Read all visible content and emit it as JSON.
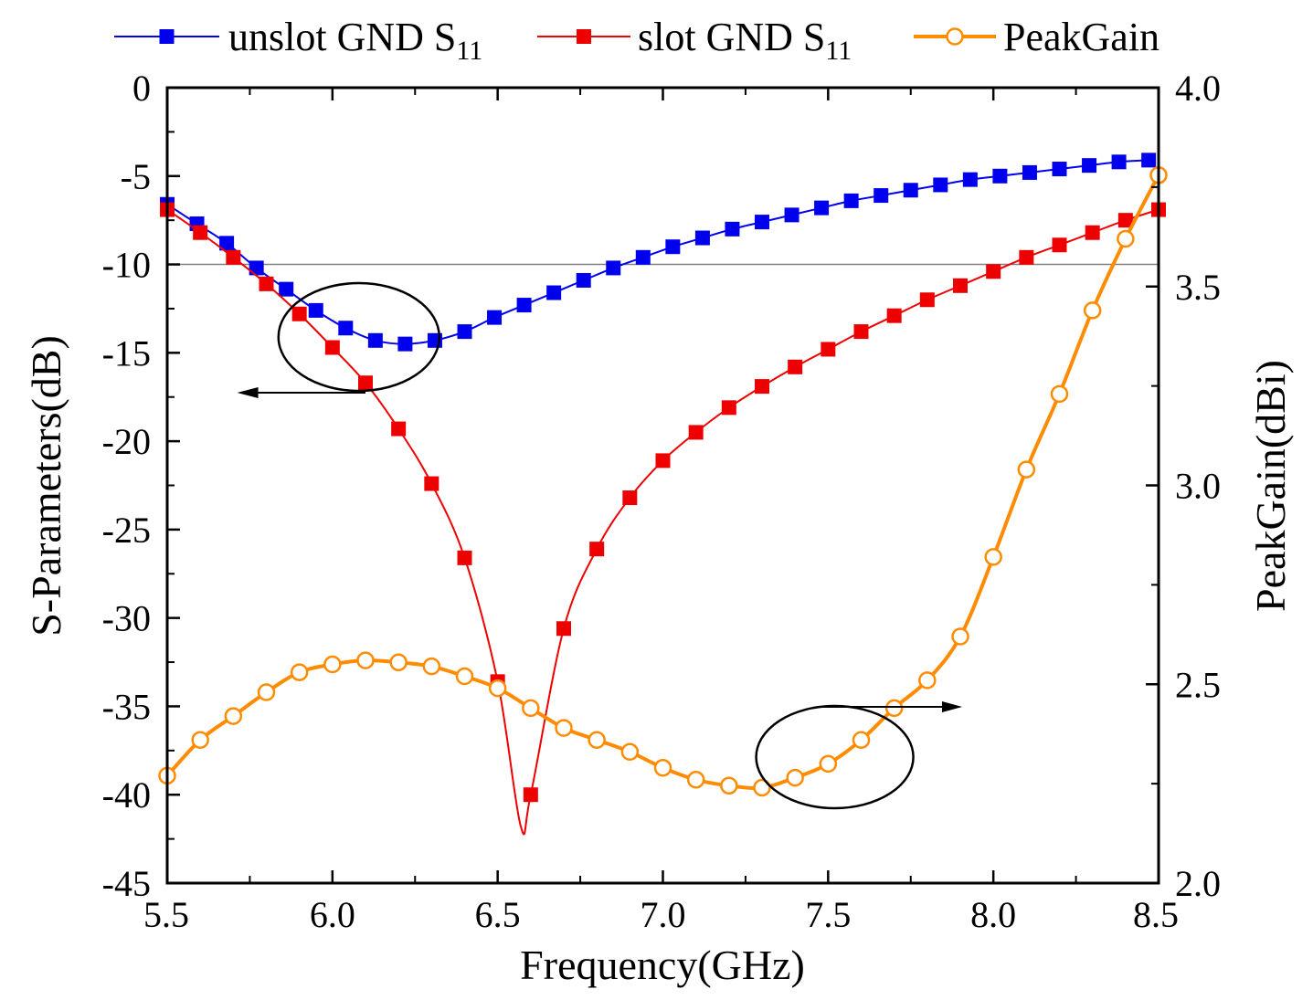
{
  "chart_data": {
    "type": "line",
    "x_axis": {
      "label": "Frequency(GHz)",
      "range": [
        5.5,
        8.5
      ],
      "ticks": [
        5.5,
        6.0,
        6.5,
        7.0,
        7.5,
        8.0,
        8.5
      ],
      "tick_labels": [
        "5.5",
        "6.0",
        "6.5",
        "7.0",
        "7.5",
        "8.0",
        "8.5"
      ]
    },
    "y_left": {
      "label": "S-Parameters(dB)",
      "range": [
        -45,
        0
      ],
      "ticks": [
        0,
        -5,
        -10,
        -15,
        -20,
        -25,
        -30,
        -35,
        -40,
        -45
      ],
      "tick_labels": [
        "0",
        "-5",
        "-10",
        "-15",
        "-20",
        "-25",
        "-30",
        "-35",
        "-40",
        "-45"
      ]
    },
    "y_right": {
      "label": "PeakGain(dBi)",
      "range": [
        2.0,
        4.0
      ],
      "ticks": [
        2.0,
        2.5,
        3.0,
        3.5,
        4.0
      ],
      "tick_labels": [
        "2.0",
        "2.5",
        "3.0",
        "3.5",
        "4.0"
      ]
    },
    "reference_line": {
      "axis": "left",
      "value": -10
    },
    "legend": {
      "position": "top",
      "items": [
        {
          "label": "unslot GND S",
          "subscript": "11",
          "color": "#0000ee",
          "marker": "square"
        },
        {
          "label": "slot GND S",
          "subscript": "11",
          "color": "#ee0000",
          "marker": "square"
        },
        {
          "label": "PeakGain",
          "subscript": "",
          "color": "#ff8c00",
          "marker": "circle-open"
        }
      ]
    },
    "series": [
      {
        "name": "unslot GND S11",
        "axis": "left",
        "color": "#0000ee",
        "x": [
          5.5,
          5.59,
          5.68,
          5.77,
          5.86,
          5.95,
          6.04,
          6.13,
          6.22,
          6.31,
          6.4,
          6.49,
          6.58,
          6.67,
          6.76,
          6.85,
          6.94,
          7.03,
          7.12,
          7.21,
          7.3,
          7.39,
          7.48,
          7.57,
          7.66,
          7.75,
          7.84,
          7.93,
          8.02,
          8.11,
          8.2,
          8.29,
          8.38,
          8.47
        ],
        "y": [
          -6.6,
          -7.7,
          -8.8,
          -10.2,
          -11.4,
          -12.6,
          -13.6,
          -14.3,
          -14.5,
          -14.3,
          -13.8,
          -13.0,
          -12.3,
          -11.6,
          -10.9,
          -10.2,
          -9.6,
          -9.0,
          -8.5,
          -8.0,
          -7.6,
          -7.2,
          -6.8,
          -6.4,
          -6.1,
          -5.8,
          -5.5,
          -5.2,
          -5.0,
          -4.8,
          -4.6,
          -4.4,
          -4.2,
          -4.1
        ]
      },
      {
        "name": "slot GND S11",
        "axis": "left",
        "color": "#ee0000",
        "x": [
          5.5,
          5.6,
          5.7,
          5.8,
          5.9,
          6.0,
          6.1,
          6.2,
          6.3,
          6.4,
          6.5,
          6.6,
          6.7,
          6.8,
          6.9,
          7.0,
          7.1,
          7.2,
          7.3,
          7.4,
          7.5,
          7.6,
          7.7,
          7.8,
          7.9,
          8.0,
          8.1,
          8.2,
          8.3,
          8.4,
          8.5
        ],
        "y": [
          -6.9,
          -8.2,
          -9.6,
          -11.1,
          -12.8,
          -14.7,
          -16.7,
          -19.3,
          -22.4,
          -26.6,
          -33.6,
          -40.0,
          -30.6,
          -26.1,
          -23.2,
          -21.1,
          -19.5,
          -18.1,
          -16.9,
          -15.8,
          -14.8,
          -13.8,
          -12.9,
          -12.0,
          -11.2,
          -10.4,
          -9.6,
          -8.9,
          -8.2,
          -7.5,
          -6.9
        ]
      },
      {
        "name": "PeakGain",
        "axis": "right",
        "color": "#ff8c00",
        "x": [
          5.5,
          5.6,
          5.7,
          5.8,
          5.9,
          6.0,
          6.1,
          6.2,
          6.3,
          6.4,
          6.5,
          6.6,
          6.7,
          6.8,
          6.9,
          7.0,
          7.1,
          7.2,
          7.3,
          7.4,
          7.5,
          7.6,
          7.7,
          7.8,
          7.9,
          8.0,
          8.1,
          8.2,
          8.3,
          8.4,
          8.5
        ],
        "y": [
          2.27,
          2.36,
          2.42,
          2.48,
          2.53,
          2.55,
          2.56,
          2.555,
          2.545,
          2.52,
          2.49,
          2.44,
          2.39,
          2.36,
          2.33,
          2.29,
          2.26,
          2.245,
          2.24,
          2.265,
          2.3,
          2.36,
          2.44,
          2.51,
          2.62,
          2.82,
          3.04,
          3.23,
          3.44,
          3.62,
          3.78
        ]
      }
    ],
    "annotations": [
      {
        "type": "ellipse-arrow",
        "target": "left-axis",
        "near_x": 6.08,
        "near_y_left": -14.3,
        "arrow_to_x": 5.72
      },
      {
        "type": "ellipse-arrow",
        "target": "right-axis",
        "near_x": 7.52,
        "near_y_left": -37.6,
        "arrow_to_x": 7.9
      }
    ]
  }
}
